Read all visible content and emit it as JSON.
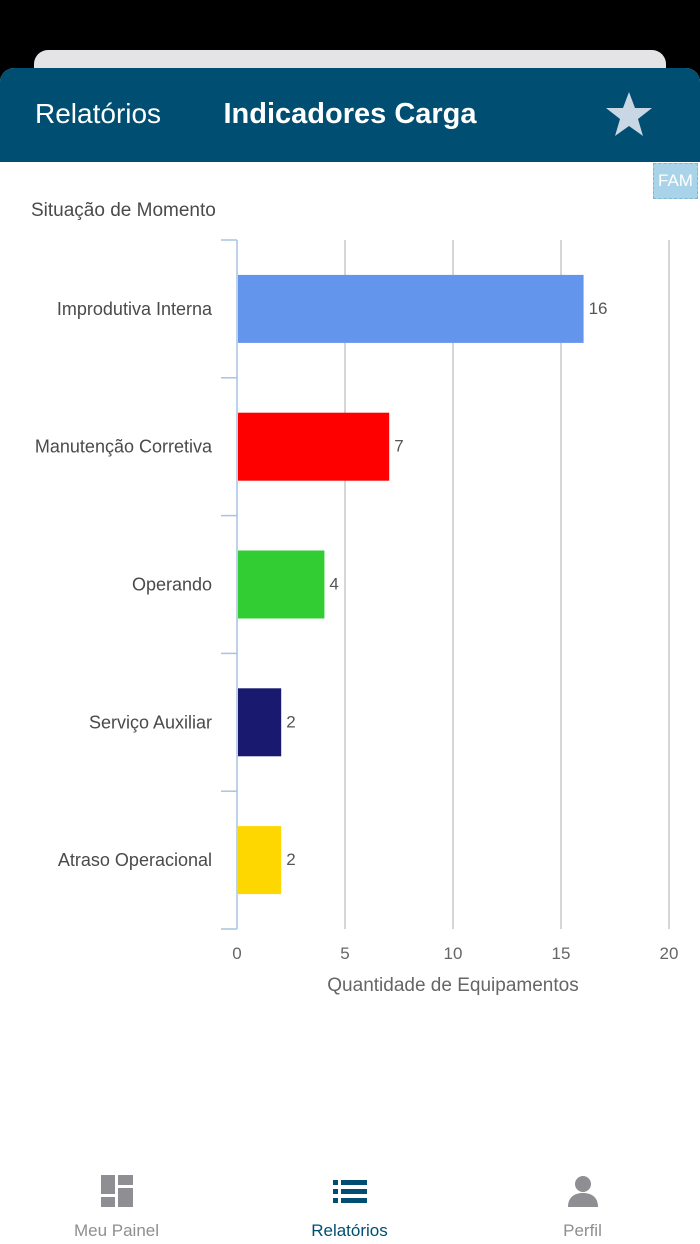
{
  "header": {
    "back_label": "Relatórios",
    "title": "Indicadores Carga",
    "favorite_icon": "star-icon"
  },
  "badge": {
    "label": "FAM"
  },
  "colors": {
    "navbar": "#004e71",
    "bars": [
      "#6495ed",
      "#ff0000",
      "#32cd32",
      "#191970",
      "#ffd700"
    ]
  },
  "chart_data": {
    "type": "bar",
    "orientation": "horizontal",
    "title": "Situação de Momento",
    "categories": [
      "Improdutiva Interna",
      "Manutenção Corretiva",
      "Operando",
      "Serviço Auxiliar",
      "Atraso Operacional"
    ],
    "values": [
      16,
      7,
      4,
      2,
      2
    ],
    "data_labels": [
      "16",
      "7",
      "4",
      "2",
      "2"
    ],
    "xlabel": "Quantidade de Equipamentos",
    "ylabel": "",
    "xlim": [
      0,
      20
    ],
    "xticks": [
      "0",
      "5",
      "10",
      "15",
      "20"
    ],
    "grid": true
  },
  "tabbar": {
    "tabs": [
      {
        "label": "Meu Painel",
        "icon": "dashboard-icon",
        "active": false
      },
      {
        "label": "Relatórios",
        "icon": "list-icon",
        "active": true
      },
      {
        "label": "Perfil",
        "icon": "person-icon",
        "active": false
      }
    ]
  }
}
